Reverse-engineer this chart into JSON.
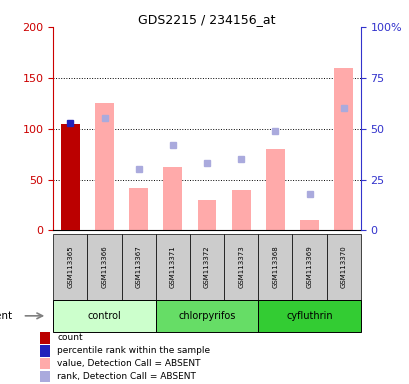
{
  "title": "GDS2215 / 234156_at",
  "samples": [
    "GSM113365",
    "GSM113366",
    "GSM113367",
    "GSM113371",
    "GSM113372",
    "GSM113373",
    "GSM113368",
    "GSM113369",
    "GSM113370"
  ],
  "groups": [
    {
      "name": "control",
      "indices": [
        0,
        1,
        2
      ],
      "color": "#ccffcc"
    },
    {
      "name": "chlorpyrifos",
      "indices": [
        3,
        4,
        5
      ],
      "color": "#66dd66"
    },
    {
      "name": "cyfluthrin",
      "indices": [
        6,
        7,
        8
      ],
      "color": "#33cc33"
    }
  ],
  "count_values": [
    105,
    null,
    null,
    null,
    null,
    null,
    null,
    null,
    null
  ],
  "percentile_rank_values": [
    53,
    null,
    null,
    null,
    null,
    null,
    null,
    null,
    null
  ],
  "absent_bar_values": [
    null,
    125,
    42,
    62,
    30,
    40,
    80,
    10,
    160
  ],
  "absent_rank_values": [
    null,
    55,
    30,
    42,
    33,
    35,
    49,
    18,
    60
  ],
  "ylim_left": [
    0,
    200
  ],
  "ylim_right": [
    0,
    100
  ],
  "yticks_left": [
    0,
    50,
    100,
    150,
    200
  ],
  "yticks_right": [
    0,
    25,
    50,
    75,
    100
  ],
  "ytick_labels_right": [
    "0",
    "25",
    "50",
    "75",
    "100%"
  ],
  "left_axis_color": "#cc0000",
  "right_axis_color": "#3333cc",
  "bar_pink": "#ffaaaa",
  "rank_blue": "#aaaadd",
  "count_red": "#bb0000",
  "percentile_blue": "#2222bb",
  "legend_items": [
    {
      "color": "#bb0000",
      "label": "count"
    },
    {
      "color": "#2222bb",
      "label": "percentile rank within the sample"
    },
    {
      "color": "#ffaaaa",
      "label": "value, Detection Call = ABSENT"
    },
    {
      "color": "#aaaadd",
      "label": "rank, Detection Call = ABSENT"
    }
  ],
  "grid_lines": [
    50,
    100,
    150
  ],
  "bar_width": 0.55,
  "marker_size": 5
}
